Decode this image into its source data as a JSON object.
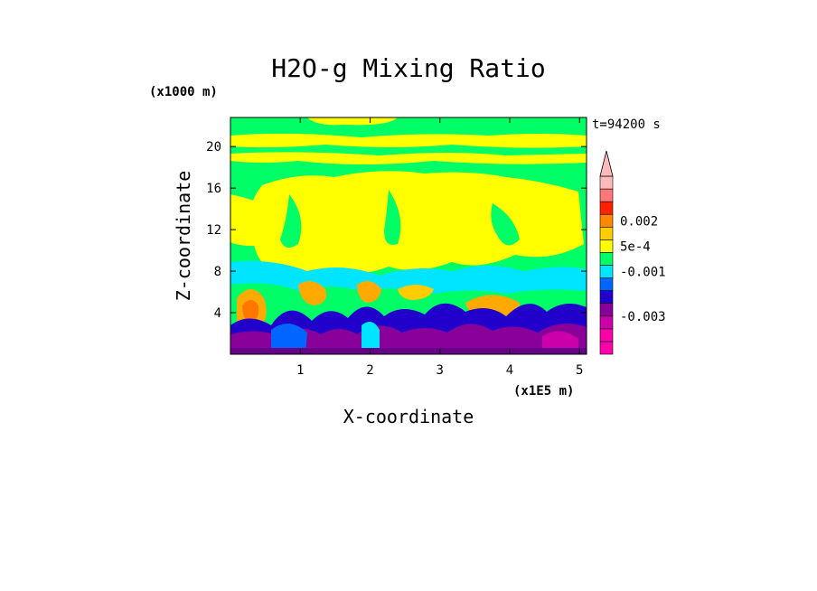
{
  "chart_data": {
    "type": "heatmap",
    "title": "H2O-g Mixing Ratio",
    "time_label": "t=94200 s",
    "xlabel": "X-coordinate",
    "ylabel": "Z-coordinate",
    "x_unit": "(x1E5 m)",
    "y_unit": "(x1000 m)",
    "xlim": [
      0,
      5.1
    ],
    "ylim": [
      0,
      22.8
    ],
    "x_ticks": [
      {
        "value": 1,
        "label": "1"
      },
      {
        "value": 2,
        "label": "2"
      },
      {
        "value": 3,
        "label": "3"
      },
      {
        "value": 4,
        "label": "4"
      },
      {
        "value": 5,
        "label": "5"
      }
    ],
    "y_ticks": [
      {
        "value": 4,
        "label": "4"
      },
      {
        "value": 8,
        "label": "8"
      },
      {
        "value": 12,
        "label": "12"
      },
      {
        "value": 16,
        "label": "16"
      },
      {
        "value": 20,
        "label": "20"
      }
    ],
    "colorbar": {
      "levels": [
        "#ff00aa",
        "#ff00aa",
        "#cc00aa",
        "#880099",
        "#2200cc",
        "#0066ff",
        "#00e5ff",
        "#00ff66",
        "#ffff00",
        "#ffcc00",
        "#ff8800",
        "#ff2200",
        "#ff7777",
        "#ffbbbb"
      ],
      "labels": [
        "0.002",
        "5e-4",
        "-0.001",
        "-0.003"
      ],
      "label_level_index": [
        10.5,
        8.5,
        6.5,
        3.0
      ]
    },
    "field_regions": [
      {
        "name": "background",
        "color": "#00ff66"
      },
      {
        "name": "upper-dry-band",
        "color": "#ffff00",
        "y_range": [
          19.5,
          20.8
        ],
        "x_range": [
          0.0,
          5.1
        ]
      },
      {
        "name": "mid-level-moist",
        "color": "#ffff00",
        "y_range": [
          8.0,
          16.5
        ],
        "x_range": [
          0.6,
          5.0
        ]
      },
      {
        "name": "cyan-layer",
        "color": "#00e5ff",
        "y_range": [
          6.0,
          8.5
        ],
        "x_range": [
          0.0,
          5.1
        ]
      },
      {
        "name": "orange-cells",
        "color": "#ffaa00",
        "y_range": [
          3.5,
          6.5
        ],
        "x_range": [
          0.1,
          4.5
        ]
      },
      {
        "name": "boundary-layer",
        "color": "#2200cc",
        "y_range": [
          0.5,
          4.5
        ],
        "x_range": [
          0.0,
          5.1
        ]
      },
      {
        "name": "surface-purple",
        "color": "#880099",
        "y_range": [
          0.0,
          2.5
        ],
        "x_range": [
          0.0,
          5.1
        ]
      }
    ]
  }
}
